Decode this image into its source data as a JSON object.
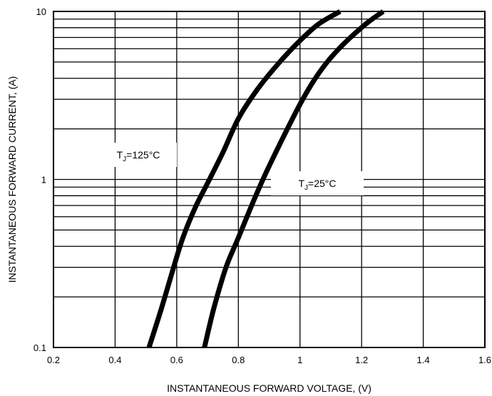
{
  "chart_data": {
    "type": "line",
    "xlabel": "INSTANTANEOUS FORWARD VOLTAGE, (V)",
    "ylabel": "INSTANTANEOUS FORWARD CURRENT, (A)",
    "xlim": [
      0.2,
      1.6
    ],
    "ylim": [
      0.1,
      10
    ],
    "yscale": "log",
    "grid": true,
    "x_ticks": [
      "0.2",
      "0.4",
      "0.6",
      "0.8",
      "1",
      "1.2",
      "1.4",
      "1.6"
    ],
    "y_ticks": [
      "0.1",
      "1",
      "10"
    ],
    "series": [
      {
        "name": "TJ=125°C",
        "label_main": "T",
        "label_sub": "J",
        "label_rest": "=125°C",
        "x": [
          0.51,
          0.55,
          0.59,
          0.62,
          0.66,
          0.7,
          0.75,
          0.8,
          0.86,
          0.93,
          1.0,
          1.06,
          1.13
        ],
        "y": [
          0.1,
          0.17,
          0.3,
          0.45,
          0.68,
          0.95,
          1.45,
          2.3,
          3.4,
          4.9,
          6.7,
          8.4,
          10
        ]
      },
      {
        "name": "TJ=25°C",
        "label_main": "T",
        "label_sub": "J",
        "label_rest": "=25°C",
        "x": [
          0.69,
          0.72,
          0.76,
          0.8,
          0.85,
          0.89,
          0.94,
          1.0,
          1.05,
          1.1,
          1.16,
          1.22,
          1.27
        ],
        "y": [
          0.1,
          0.17,
          0.3,
          0.45,
          0.75,
          1.1,
          1.7,
          2.8,
          4.0,
          5.3,
          6.9,
          8.6,
          10
        ]
      }
    ]
  }
}
